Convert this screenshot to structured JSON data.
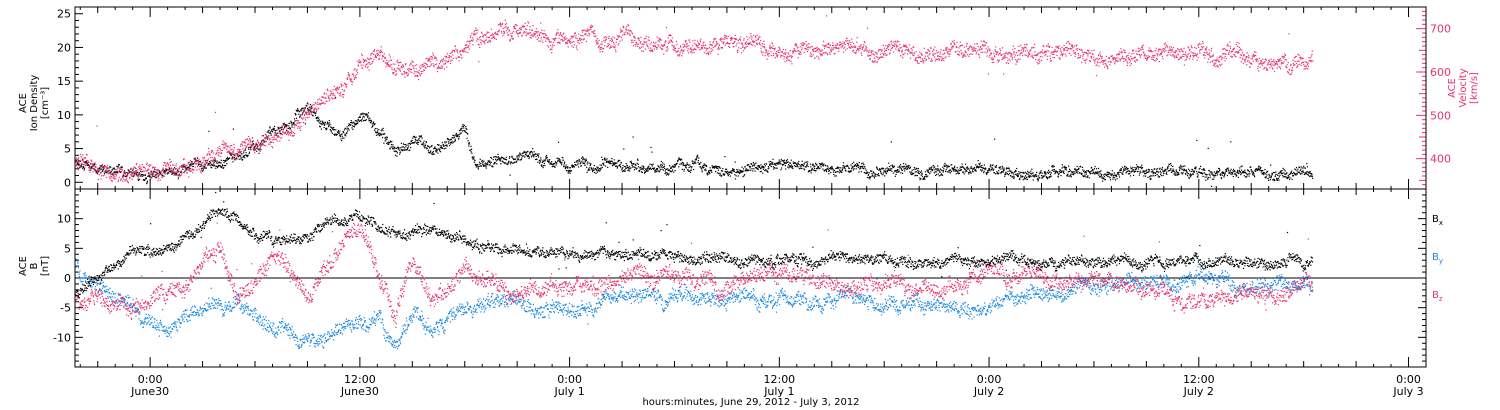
{
  "chart_data": {
    "type": "scatter",
    "xlabel": "hours:minutes, June 29, 2012 - July  3, 2012",
    "x_ticks": [
      {
        "hour": 24,
        "time": "0:00",
        "date": "June30"
      },
      {
        "hour": 36,
        "time": "12:00",
        "date": "June30"
      },
      {
        "hour": 48,
        "time": "0:00",
        "date": "July 1"
      },
      {
        "hour": 60,
        "time": "12:00",
        "date": "July 1"
      },
      {
        "hour": 72,
        "time": "0:00",
        "date": "July 2"
      },
      {
        "hour": 84,
        "time": "12:00",
        "date": "July 2"
      },
      {
        "hour": 96,
        "time": "0:00",
        "date": "July 3"
      }
    ],
    "xlim_hours": [
      19.7,
      97.0
    ],
    "colors": {
      "density": "#000000",
      "velocity": "#e8336a",
      "bx": "#000000",
      "by": "#1a86e0",
      "bz": "#e8336a"
    },
    "panels": [
      {
        "id": "density_velocity",
        "ylabel_left": [
          "ACE",
          "Ion Density",
          "[cm⁻³]"
        ],
        "ylim_left": [
          -1,
          26
        ],
        "yticks_left": [
          0,
          5,
          10,
          15,
          20,
          25
        ],
        "ylabel_right": [
          "ACE",
          "Velocity",
          "[km/s]"
        ],
        "ylim_right": [
          330,
          750
        ],
        "yticks_right": [
          400,
          500,
          600,
          700
        ],
        "series": [
          {
            "key": "density",
            "axis": "left",
            "color": "#000000",
            "keyframes": [
              [
                19.7,
                3.5
              ],
              [
                21,
                3
              ],
              [
                22,
                1.5
              ],
              [
                23,
                1
              ],
              [
                24,
                0.8
              ],
              [
                25,
                1.5
              ],
              [
                26.5,
                2.5
              ],
              [
                28,
                3
              ],
              [
                30,
                5
              ],
              [
                31,
                8
              ],
              [
                32,
                9
              ],
              [
                33,
                11
              ],
              [
                34,
                8
              ],
              [
                35,
                7
              ],
              [
                36,
                10
              ],
              [
                37,
                8
              ],
              [
                38,
                5
              ],
              [
                39,
                6
              ],
              [
                40,
                5
              ],
              [
                41,
                6
              ],
              [
                42,
                8
              ],
              [
                42.5,
                3
              ],
              [
                45,
                3
              ],
              [
                48,
                2.8
              ],
              [
                52,
                2.5
              ],
              [
                56,
                2.3
              ],
              [
                60,
                2.2
              ],
              [
                64,
                2
              ],
              [
                68,
                2
              ],
              [
                72,
                1.8
              ],
              [
                76,
                1.7
              ],
              [
                80,
                1.6
              ],
              [
                84,
                1.4
              ],
              [
                88,
                1.3
              ],
              [
                90.5,
                1.3
              ]
            ]
          },
          {
            "key": "velocity",
            "axis": "right",
            "color": "#e8336a",
            "keyframes": [
              [
                19.7,
                390
              ],
              [
                21,
                380
              ],
              [
                23,
                370
              ],
              [
                25,
                385
              ],
              [
                27,
                400
              ],
              [
                29,
                420
              ],
              [
                31,
                460
              ],
              [
                33,
                500
              ],
              [
                35,
                560
              ],
              [
                36,
                620
              ],
              [
                37,
                630
              ],
              [
                38,
                610
              ],
              [
                39,
                600
              ],
              [
                40,
                630
              ],
              [
                41,
                640
              ],
              [
                41.8,
                650
              ],
              [
                42.5,
                680
              ],
              [
                44,
                690
              ],
              [
                48,
                680
              ],
              [
                52,
                670
              ],
              [
                56,
                660
              ],
              [
                60,
                655
              ],
              [
                64,
                660
              ],
              [
                68,
                645
              ],
              [
                72,
                650
              ],
              [
                76,
                650
              ],
              [
                80,
                640
              ],
              [
                84,
                650
              ],
              [
                86,
                640
              ],
              [
                88,
                620
              ],
              [
                90.5,
                625
              ]
            ]
          }
        ]
      },
      {
        "id": "magnetic_field",
        "ylabel_left": [
          "ACE",
          "B",
          "[nT]"
        ],
        "ylim_left": [
          -15,
          15
        ],
        "yticks_left": [
          -10,
          -5,
          0,
          5,
          10
        ],
        "zero_line": true,
        "legend": [
          {
            "label": "B",
            "sub": "x",
            "color": "#000000"
          },
          {
            "label": "B",
            "sub": "y",
            "color": "#1a86e0"
          },
          {
            "label": "B",
            "sub": "z",
            "color": "#e8336a"
          }
        ],
        "series": [
          {
            "key": "bx",
            "color": "#000000",
            "keyframes": [
              [
                19.7,
                -2
              ],
              [
                21,
                0
              ],
              [
                23,
                4
              ],
              [
                25,
                5
              ],
              [
                27,
                9
              ],
              [
                28,
                11
              ],
              [
                29,
                9
              ],
              [
                31,
                6
              ],
              [
                33,
                7
              ],
              [
                34,
                9
              ],
              [
                36,
                10
              ],
              [
                38,
                8
              ],
              [
                40,
                8
              ],
              [
                42,
                7
              ],
              [
                44,
                5
              ],
              [
                48,
                4
              ],
              [
                52,
                4
              ],
              [
                56,
                3
              ],
              [
                60,
                3
              ],
              [
                64,
                3
              ],
              [
                68,
                2.5
              ],
              [
                72,
                3
              ],
              [
                76,
                3
              ],
              [
                80,
                3
              ],
              [
                84,
                3
              ],
              [
                88,
                2.5
              ],
              [
                90.5,
                2
              ]
            ]
          },
          {
            "key": "by",
            "color": "#1a86e0",
            "keyframes": [
              [
                19.7,
                3
              ],
              [
                21,
                -2
              ],
              [
                23,
                -5
              ],
              [
                25,
                -8
              ],
              [
                27,
                -4
              ],
              [
                29,
                -5
              ],
              [
                31,
                -9
              ],
              [
                33,
                -10
              ],
              [
                35,
                -8
              ],
              [
                37,
                -7
              ],
              [
                38,
                -11
              ],
              [
                39,
                -6
              ],
              [
                40,
                -8
              ],
              [
                42,
                -4
              ],
              [
                44,
                -3
              ],
              [
                46,
                -5
              ],
              [
                48,
                -5
              ],
              [
                50,
                -4
              ],
              [
                52,
                -3
              ],
              [
                56,
                -3
              ],
              [
                60,
                -4
              ],
              [
                64,
                -3
              ],
              [
                68,
                -4
              ],
              [
                72,
                -5
              ],
              [
                74,
                -3
              ],
              [
                76,
                -2
              ],
              [
                80,
                -1
              ],
              [
                84,
                0
              ],
              [
                86,
                -2
              ],
              [
                88,
                -1
              ],
              [
                90.5,
                -2
              ]
            ]
          },
          {
            "key": "bz",
            "color": "#e8336a",
            "keyframes": [
              [
                19.7,
                -4
              ],
              [
                21,
                -3
              ],
              [
                23,
                -6
              ],
              [
                25,
                -3
              ],
              [
                27,
                1
              ],
              [
                28,
                5
              ],
              [
                29,
                -2
              ],
              [
                31,
                4
              ],
              [
                33,
                -3
              ],
              [
                35,
                5
              ],
              [
                36,
                9
              ],
              [
                37,
                1
              ],
              [
                38,
                -6
              ],
              [
                39,
                3
              ],
              [
                40,
                -3
              ],
              [
                42,
                1
              ],
              [
                44,
                -1
              ],
              [
                48,
                -2
              ],
              [
                52,
                0
              ],
              [
                56,
                0
              ],
              [
                60,
                1
              ],
              [
                64,
                -1
              ],
              [
                68,
                -2
              ],
              [
                72,
                0
              ],
              [
                76,
                0
              ],
              [
                80,
                -1
              ],
              [
                84,
                -4
              ],
              [
                86,
                -3
              ],
              [
                88,
                -2
              ],
              [
                90.5,
                -1
              ]
            ]
          }
        ]
      }
    ]
  }
}
